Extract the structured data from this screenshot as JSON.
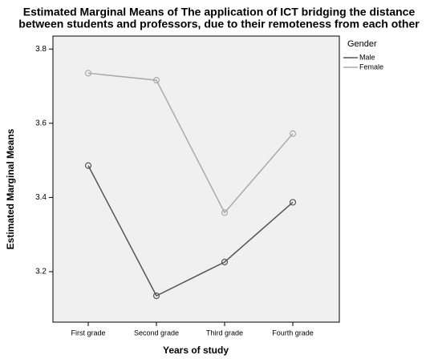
{
  "chart_data": {
    "type": "line",
    "title": [
      "Estimated Marginal Means of The application of ICT bridging the distance",
      "between students and professors, due to their remoteness from each other"
    ],
    "x_label": "Years of study",
    "y_label": "Estimated Marginal Means",
    "categories": [
      "First grade",
      "Second grade",
      "Third grade",
      "Fourth grade"
    ],
    "series": [
      {
        "name": "Male",
        "color": "#555555",
        "values": [
          3.486,
          3.135,
          3.226,
          3.387
        ]
      },
      {
        "name": "Female",
        "color": "#aaaaaa",
        "values": [
          3.735,
          3.716,
          3.359,
          3.572
        ]
      }
    ],
    "legend_title": "Gender",
    "legend": "right",
    "ylim": [
      3.064,
      3.835
    ],
    "yticks": [
      3.2,
      3.4,
      3.6,
      3.8
    ]
  }
}
